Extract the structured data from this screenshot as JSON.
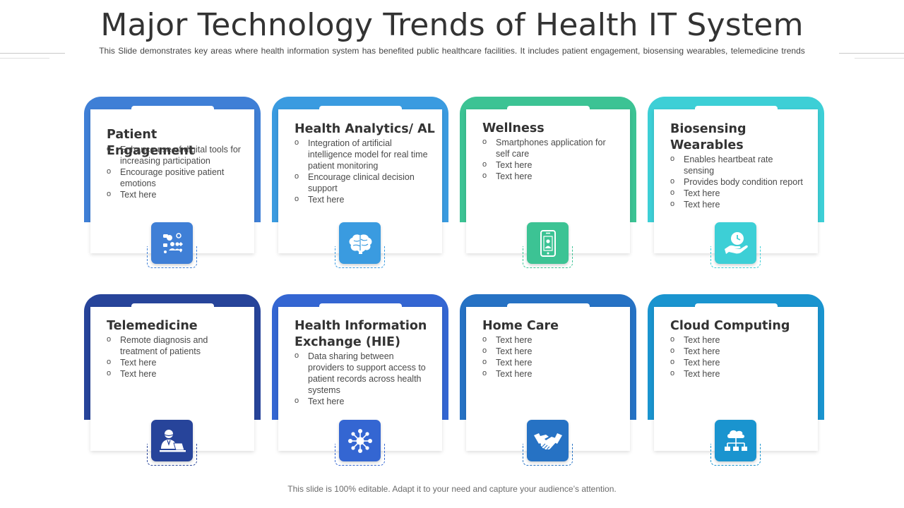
{
  "title": "Major Technology Trends of Health IT System",
  "subtitle": "This Slide demonstrates key areas where health information system has benefited public healthcare facilities. It includes patient engagement,  biosensing wearables,  telemedicine trends",
  "footer": "This slide is 100% editable. Adapt it to your need and capture your audience’s attention.",
  "cards": [
    {
      "title": "Patient Engagement",
      "color": "#3f7fd6",
      "icon": "social-network-icon",
      "bullets": [
        "Enhance use of digital tools for increasing participation",
        "Encourage  positive patient emotions",
        "Text here"
      ]
    },
    {
      "title": "Health Analytics/ AL",
      "color": "#3a9be0",
      "icon": "brain-icon",
      "bullets": [
        "Integration of artificial intelligence model for real time patient monitoring",
        "Encourage  clinical decision support",
        "Text here"
      ]
    },
    {
      "title": "Wellness",
      "color": "#3cc394",
      "icon": "smartphone-profile-icon",
      "bullets": [
        "Smartphones application for self care",
        "Text here",
        "Text here"
      ]
    },
    {
      "title": "Biosensing Wearables",
      "color": "#3dcfd6",
      "icon": "hand-clock-icon",
      "bullets": [
        "Enables heartbeat rate sensing",
        "Provides body condition report",
        "Text here",
        "Text here"
      ]
    },
    {
      "title": "Telemedicine",
      "color": "#27449a",
      "icon": "doctor-laptop-icon",
      "bullets": [
        "Remote diagnosis and treatment of patients",
        "Text here",
        "Text here"
      ]
    },
    {
      "title": "Health Information Exchange (HIE)",
      "color": "#3466d2",
      "icon": "network-hub-icon",
      "bullets": [
        "Data sharing between providers to support access to patient records across health systems",
        "Text here"
      ]
    },
    {
      "title": "Home Care",
      "color": "#2672c4",
      "icon": "handshake-icon",
      "bullets": [
        "Text here",
        "Text here",
        "Text here",
        "Text here"
      ]
    },
    {
      "title": "Cloud Computing",
      "color": "#1a94cf",
      "icon": "cloud-network-icon",
      "bullets": [
        "Text here",
        "Text here",
        "Text here",
        "Text here"
      ]
    }
  ]
}
